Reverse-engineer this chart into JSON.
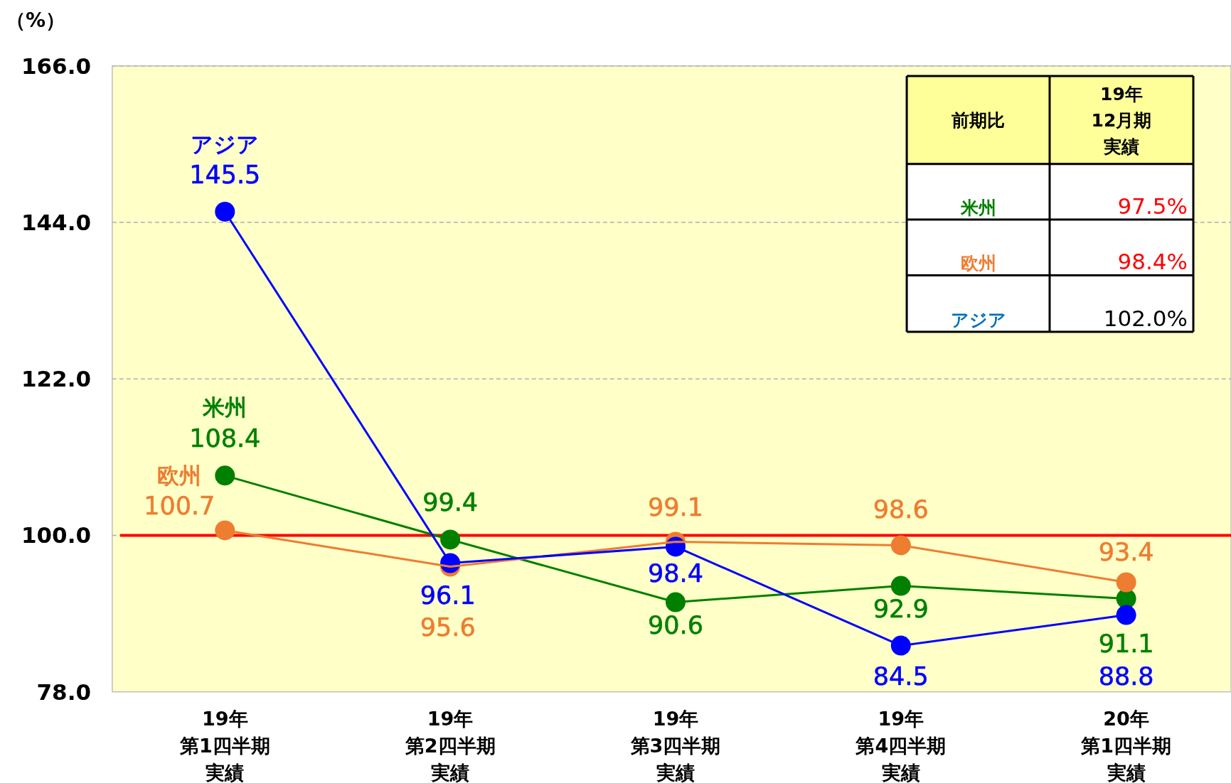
{
  "chart_data": {
    "type": "line",
    "ylabel": "（%）",
    "categories": [
      "19年第1四半期実績",
      "19年第2四半期実績",
      "19年第3四半期実績",
      "19年第4四半期実績",
      "20年第1四半期実績"
    ],
    "series": [
      {
        "name": "米州",
        "color": "#008000",
        "values": [
          108.4,
          99.4,
          90.6,
          92.9,
          91.1
        ]
      },
      {
        "name": "欧州",
        "color": "#ed7d31",
        "values": [
          100.7,
          95.6,
          99.1,
          98.6,
          93.4
        ]
      },
      {
        "name": "アジア",
        "color": "#0000ff",
        "values": [
          145.5,
          96.1,
          98.4,
          84.5,
          88.8
        ]
      }
    ],
    "ylim": [
      78,
      166
    ],
    "yticks": [
      {
        "value": 78,
        "label": "78.0"
      },
      {
        "value": 100,
        "label": "100.0"
      },
      {
        "value": 122,
        "label": "122.0"
      },
      {
        "value": 144,
        "label": "144.0"
      },
      {
        "value": 166,
        "label": "166.0"
      }
    ],
    "grid": "y",
    "marker": "circle",
    "line_style": "solid",
    "data_labels": true,
    "legend": false,
    "ref_lines": [
      {
        "axis": "y",
        "value": 100,
        "color": "#ff0000"
      }
    ],
    "annotations": [
      "前期比",
      "19年12月期実績",
      "米州",
      "97.5%",
      "欧州",
      "98.4%",
      "アジア",
      "102.0%"
    ]
  }
}
